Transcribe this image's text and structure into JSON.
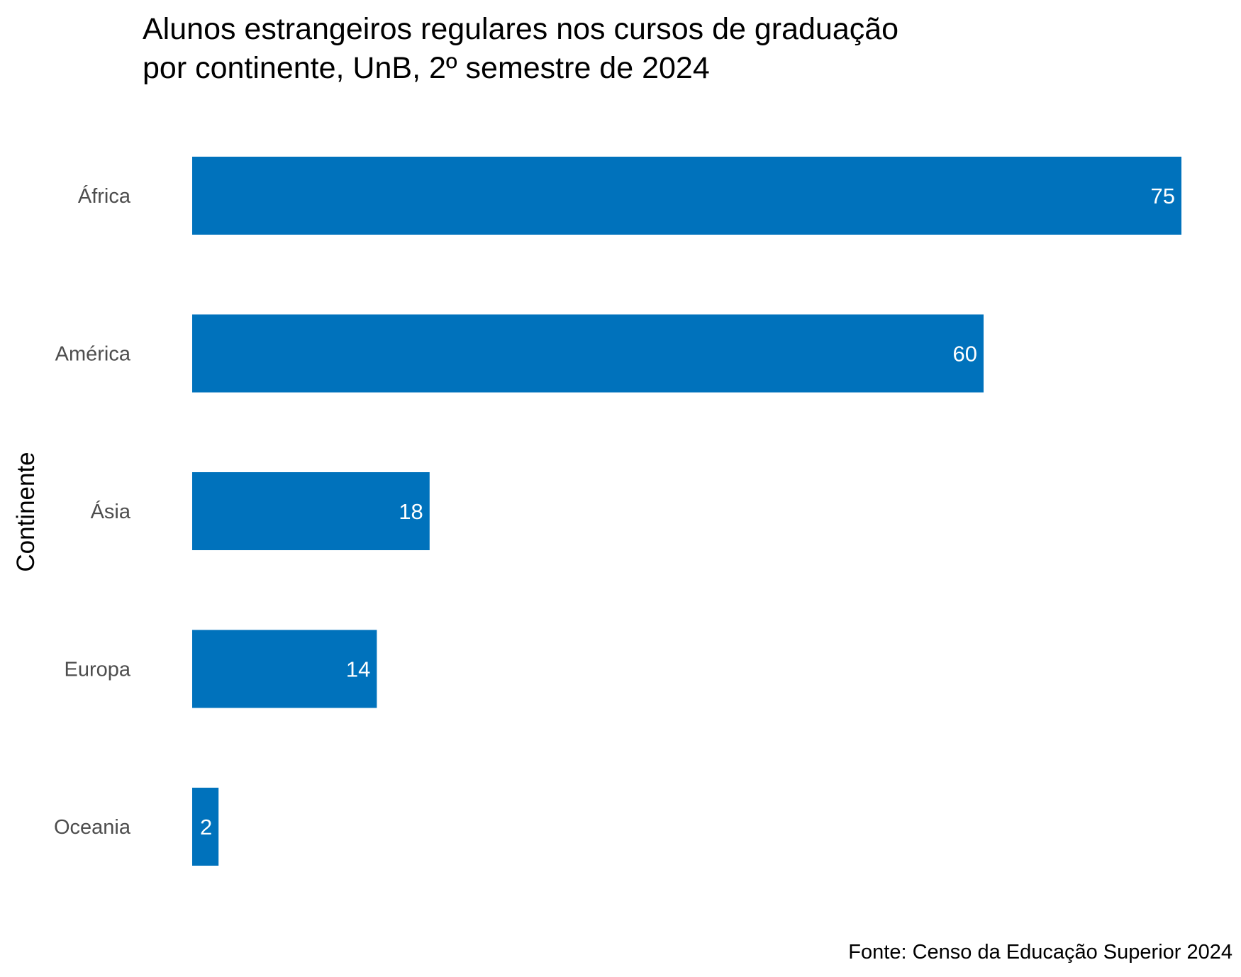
{
  "chart_data": {
    "type": "bar",
    "orientation": "horizontal",
    "title": "Alunos estrangeiros regulares nos cursos de graduação por continente, UnB, 2º semestre de 2024",
    "title_lines": [
      "Alunos estrangeiros regulares nos cursos de graduação",
      "por continente, UnB, 2º semestre de 2024"
    ],
    "xlabel": "",
    "ylabel": "Continente",
    "categories": [
      "África",
      "América",
      "Ásia",
      "Europa",
      "Oceania"
    ],
    "values": [
      75,
      60,
      18,
      14,
      2
    ],
    "xlim": [
      0,
      75
    ],
    "grid": false,
    "data_labels": true,
    "bar_color": "#0072BC",
    "caption": "Fonte: Censo da Educação Superior 2024"
  }
}
